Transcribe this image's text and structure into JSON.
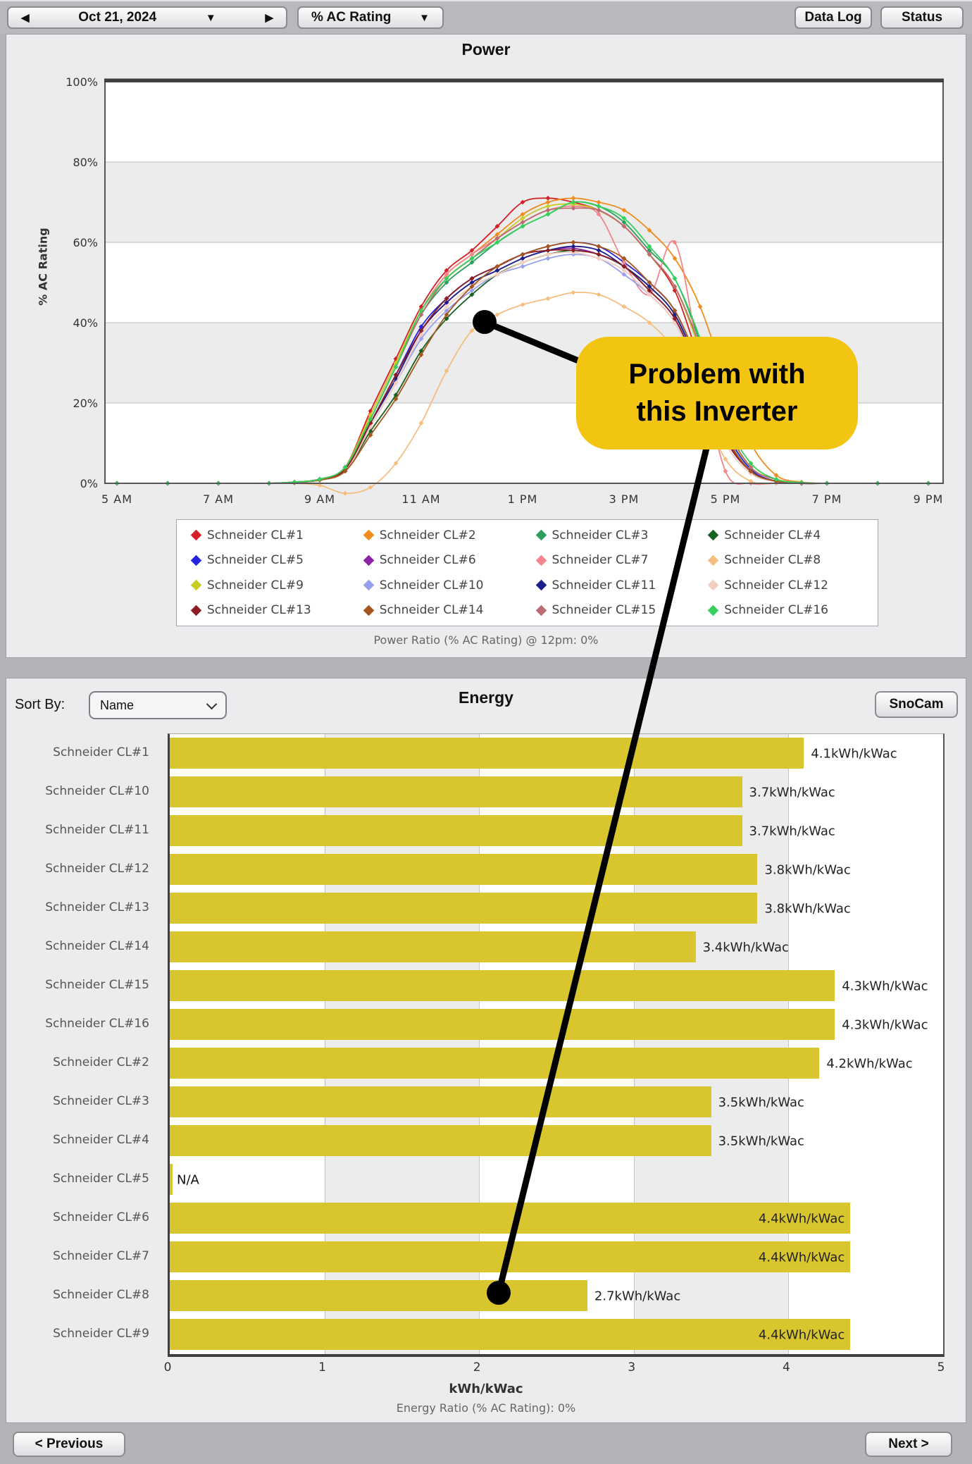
{
  "toolbar": {
    "prev_icon": "◀",
    "next_icon": "▶",
    "dropdown_icon": "▼",
    "date": "Oct 21, 2024",
    "metric": "% AC Rating",
    "data_log_label": "Data Log",
    "status_label": "Status"
  },
  "power_section": {
    "title": "Power",
    "y_axis_title": "% AC Rating",
    "caption": "Power Ratio (% AC Rating) @ 12pm: 0%"
  },
  "energy_section": {
    "title": "Energy",
    "sort_by_label": "Sort By:",
    "sort_value": "Name",
    "snocam_label": "SnoCam",
    "x_axis_title": "kWh/kWac",
    "caption": "Energy Ratio (% AC Rating): 0%"
  },
  "annotation": {
    "line1": "Problem with",
    "line2": "this Inverter"
  },
  "footer": {
    "previous_label": "< Previous",
    "next_label": "Next >"
  },
  "colors": {
    "bar": "#d9c62e",
    "callout": "#f3c513",
    "band_gray": "#ececec",
    "band_white": "#ffffff"
  },
  "chart_data": [
    {
      "type": "line",
      "title": "Power",
      "ylabel": "% AC Rating",
      "xlim": [
        5,
        21
      ],
      "ylim": [
        0,
        100
      ],
      "grid": "horizontal-bands",
      "legend_position": "bottom",
      "x_tick_hours": [
        5,
        7,
        9,
        11,
        13,
        15,
        17,
        19,
        21
      ],
      "x_tick_labels": [
        "5 AM",
        "7 AM",
        "9 AM",
        "11 AM",
        "1 PM",
        "3 PM",
        "5 PM",
        "7 PM",
        "9 PM"
      ],
      "y_tick_values": [
        0,
        20,
        40,
        60,
        80,
        100
      ],
      "y_tick_labels": [
        "0%",
        "20%",
        "40%",
        "60%",
        "80%",
        "100%"
      ],
      "x_hours": [
        5,
        6,
        7,
        8,
        8.5,
        9,
        9.5,
        10,
        10.5,
        11,
        11.5,
        12,
        12.5,
        13,
        13.5,
        14,
        14.5,
        15,
        15.5,
        16,
        16.5,
        17,
        17.5,
        18,
        18.5,
        19,
        20,
        21
      ],
      "series": [
        {
          "name": "Schneider CL#1",
          "color": "#d42026",
          "values": [
            0,
            0,
            0,
            0,
            0.3,
            1,
            4,
            18,
            31,
            44,
            53,
            58,
            64,
            70,
            71,
            70,
            68,
            64,
            57,
            48,
            30,
            12,
            3,
            0.5,
            0,
            0,
            0,
            0
          ]
        },
        {
          "name": "Schneider CL#2",
          "color": "#f08c1e",
          "values": [
            0,
            0,
            0,
            0,
            0.3,
            1,
            4,
            17,
            30,
            43,
            52,
            57,
            62,
            67,
            70,
            71,
            70,
            68,
            63,
            56,
            44,
            26,
            10,
            2,
            0.3,
            0,
            0,
            0
          ]
        },
        {
          "name": "Schneider CL#3",
          "color": "#2d9e60",
          "values": [
            0,
            0,
            0,
            0,
            0.3,
            1,
            4,
            16,
            29,
            42,
            50,
            55,
            60,
            64,
            67,
            70,
            69,
            65,
            58,
            51,
            35,
            15,
            4,
            1,
            0,
            0,
            0,
            0
          ]
        },
        {
          "name": "Schneider CL#4",
          "color": "#17611f",
          "values": [
            0,
            0,
            0,
            0,
            0.2,
            0.8,
            3,
            13,
            22,
            33,
            41,
            47,
            52,
            55,
            57,
            58,
            57,
            54,
            49,
            42,
            28,
            12,
            3,
            0.5,
            0,
            0,
            0,
            0
          ]
        },
        {
          "name": "Schneider CL#5",
          "color": "#2424e0",
          "values": [
            0,
            0,
            0,
            0,
            0.2,
            1,
            3.5,
            15,
            27,
            39,
            46,
            51,
            54,
            57,
            59,
            60,
            59,
            55,
            50,
            43,
            29,
            13,
            3.5,
            0.5,
            0,
            0,
            0,
            0
          ]
        },
        {
          "name": "Schneider CL#6",
          "color": "#8c22a6",
          "values": [
            0,
            0,
            0,
            0,
            0.2,
            1,
            3.5,
            15,
            26,
            38,
            45,
            50,
            53,
            56,
            58,
            58.5,
            57,
            54,
            48,
            41,
            27,
            11,
            3,
            0.5,
            0,
            0,
            0,
            0
          ]
        },
        {
          "name": "Schneider CL#7",
          "color": "#f4858d",
          "values": [
            0,
            0,
            0,
            0,
            0.3,
            1,
            4,
            17,
            30,
            43,
            52,
            57,
            61,
            65,
            68,
            69,
            67,
            55,
            47,
            60,
            30,
            3,
            0,
            0,
            0,
            0,
            0,
            0
          ]
        },
        {
          "name": "Schneider CL#8",
          "color": "#f6bd80",
          "values": [
            0,
            0,
            0,
            0,
            0,
            -0.5,
            -2.5,
            -1,
            5,
            15,
            28,
            38,
            42,
            44.5,
            46,
            47.5,
            47,
            44,
            40,
            33,
            20,
            6,
            0.5,
            0,
            0,
            0,
            0,
            0
          ]
        },
        {
          "name": "Schneider CL#9",
          "color": "#c9cc25",
          "values": [
            0,
            0,
            0,
            0,
            0.3,
            1,
            4,
            17,
            30,
            43,
            51,
            56,
            61,
            66,
            69,
            69.5,
            68,
            64,
            57,
            49,
            33,
            14,
            4,
            1,
            0,
            0,
            0,
            0
          ]
        },
        {
          "name": "Schneider CL#10",
          "color": "#97a0ee",
          "values": [
            0,
            0,
            0,
            0,
            0.2,
            0.8,
            3,
            14,
            25,
            36,
            43,
            48,
            52,
            54,
            56,
            57,
            56,
            52,
            47,
            40,
            26,
            10,
            2.5,
            0.4,
            0,
            0,
            0,
            0
          ]
        },
        {
          "name": "Schneider CL#11",
          "color": "#1c1f8a",
          "values": [
            0,
            0,
            0,
            0,
            0.2,
            1,
            3.5,
            15,
            26,
            38,
            45,
            50,
            53,
            56,
            58,
            59,
            58,
            54,
            49,
            42,
            28,
            12,
            3,
            0.5,
            0,
            0,
            0,
            0
          ]
        },
        {
          "name": "Schneider CL#12",
          "color": "#f3cdbd",
          "values": [
            0,
            0,
            0,
            0,
            0.2,
            0.8,
            3,
            14,
            25,
            37,
            44,
            49,
            52,
            55,
            57,
            57.5,
            56,
            53,
            47,
            40,
            26,
            10,
            2.5,
            0.4,
            0,
            0,
            0,
            0
          ]
        },
        {
          "name": "Schneider CL#13",
          "color": "#8e1c24",
          "values": [
            0,
            0,
            0,
            0,
            0.2,
            1,
            3.5,
            15,
            27,
            38,
            46,
            51,
            54,
            57,
            58,
            58,
            57,
            54,
            48,
            41,
            27,
            11,
            3,
            0.5,
            0,
            0,
            0,
            0
          ]
        },
        {
          "name": "Schneider CL#14",
          "color": "#a5561f",
          "values": [
            0,
            0,
            0,
            0,
            0.2,
            0.8,
            3,
            12,
            21,
            32,
            42,
            49,
            54,
            57,
            59,
            60,
            59,
            56,
            50,
            43,
            29,
            12,
            3,
            0.5,
            0,
            0,
            0,
            0
          ]
        },
        {
          "name": "Schneider CL#15",
          "color": "#bc6b72",
          "values": [
            0,
            0,
            0,
            0,
            0.3,
            1,
            4,
            16,
            29,
            42,
            51,
            56,
            61,
            65,
            68,
            68.5,
            68,
            64,
            57,
            49,
            34,
            15,
            4,
            1,
            0,
            0,
            0,
            0
          ]
        },
        {
          "name": "Schneider CL#16",
          "color": "#35d05b",
          "values": [
            0,
            0,
            0,
            0,
            0.3,
            1,
            4,
            16,
            29,
            43,
            51,
            56,
            60,
            64,
            67,
            70,
            69,
            66,
            59,
            51,
            36,
            16,
            5,
            1,
            0.2,
            0,
            0,
            0
          ]
        }
      ]
    },
    {
      "type": "bar",
      "title": "Energy",
      "orientation": "horizontal",
      "xlabel": "kWh/kWac",
      "xlim": [
        0,
        5
      ],
      "x_ticks": [
        0,
        1,
        2,
        3,
        4,
        5
      ],
      "bar_color": "#d9c62e",
      "categories": [
        "Schneider CL#1",
        "Schneider CL#10",
        "Schneider CL#11",
        "Schneider CL#12",
        "Schneider CL#13",
        "Schneider CL#14",
        "Schneider CL#15",
        "Schneider CL#16",
        "Schneider CL#2",
        "Schneider CL#3",
        "Schneider CL#4",
        "Schneider CL#5",
        "Schneider CL#6",
        "Schneider CL#7",
        "Schneider CL#8",
        "Schneider CL#9"
      ],
      "values": [
        4.1,
        3.7,
        3.7,
        3.8,
        3.8,
        3.4,
        4.3,
        4.3,
        4.2,
        3.5,
        3.5,
        null,
        4.4,
        4.4,
        2.7,
        4.4
      ],
      "value_labels": [
        "4.1kWh/kWac",
        "3.7kWh/kWac",
        "3.7kWh/kWac",
        "3.8kWh/kWac",
        "3.8kWh/kWac",
        "3.4kWh/kWac",
        "4.3kWh/kWac",
        "4.3kWh/kWac",
        "4.2kWh/kWac",
        "3.5kWh/kWac",
        "3.5kWh/kWac",
        "N/A",
        "4.4kWh/kWac",
        "4.4kWh/kWac",
        "2.7kWh/kWac",
        "4.4kWh/kWac"
      ],
      "label_inside": [
        false,
        false,
        false,
        false,
        false,
        false,
        false,
        false,
        false,
        false,
        false,
        false,
        true,
        true,
        false,
        true
      ]
    }
  ]
}
